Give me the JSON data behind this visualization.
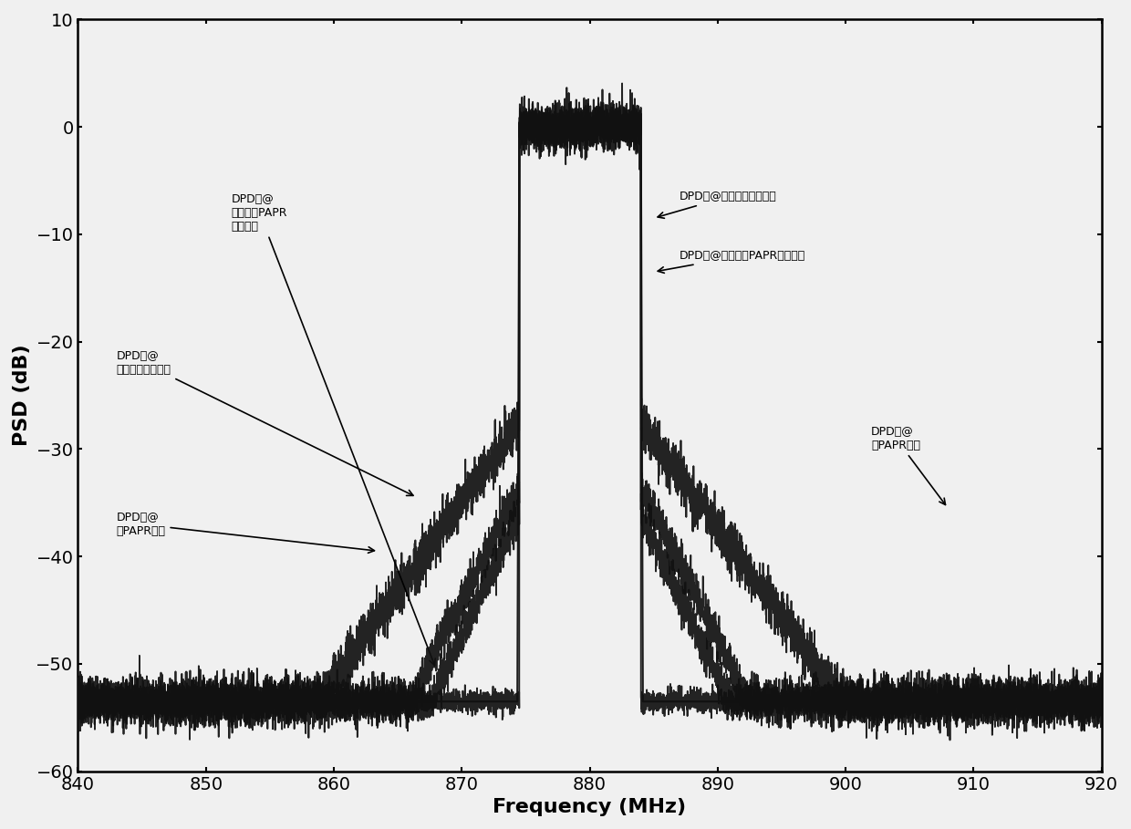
{
  "freq_start": 840,
  "freq_end": 920,
  "psd_min": -60,
  "psd_max": 10,
  "signal_band_low": 874.5,
  "signal_band_high": 884.0,
  "xlabel": "Frequency (MHz)",
  "ylabel": "PSD (dB)",
  "yticks": [
    10,
    0,
    -10,
    -20,
    -30,
    -40,
    -50,
    -60
  ],
  "xticks": [
    840,
    850,
    860,
    870,
    880,
    890,
    900,
    910,
    920
  ],
  "noise_floor": -53.5,
  "bg_color": "#f0f0f0",
  "line_color": "#111111"
}
